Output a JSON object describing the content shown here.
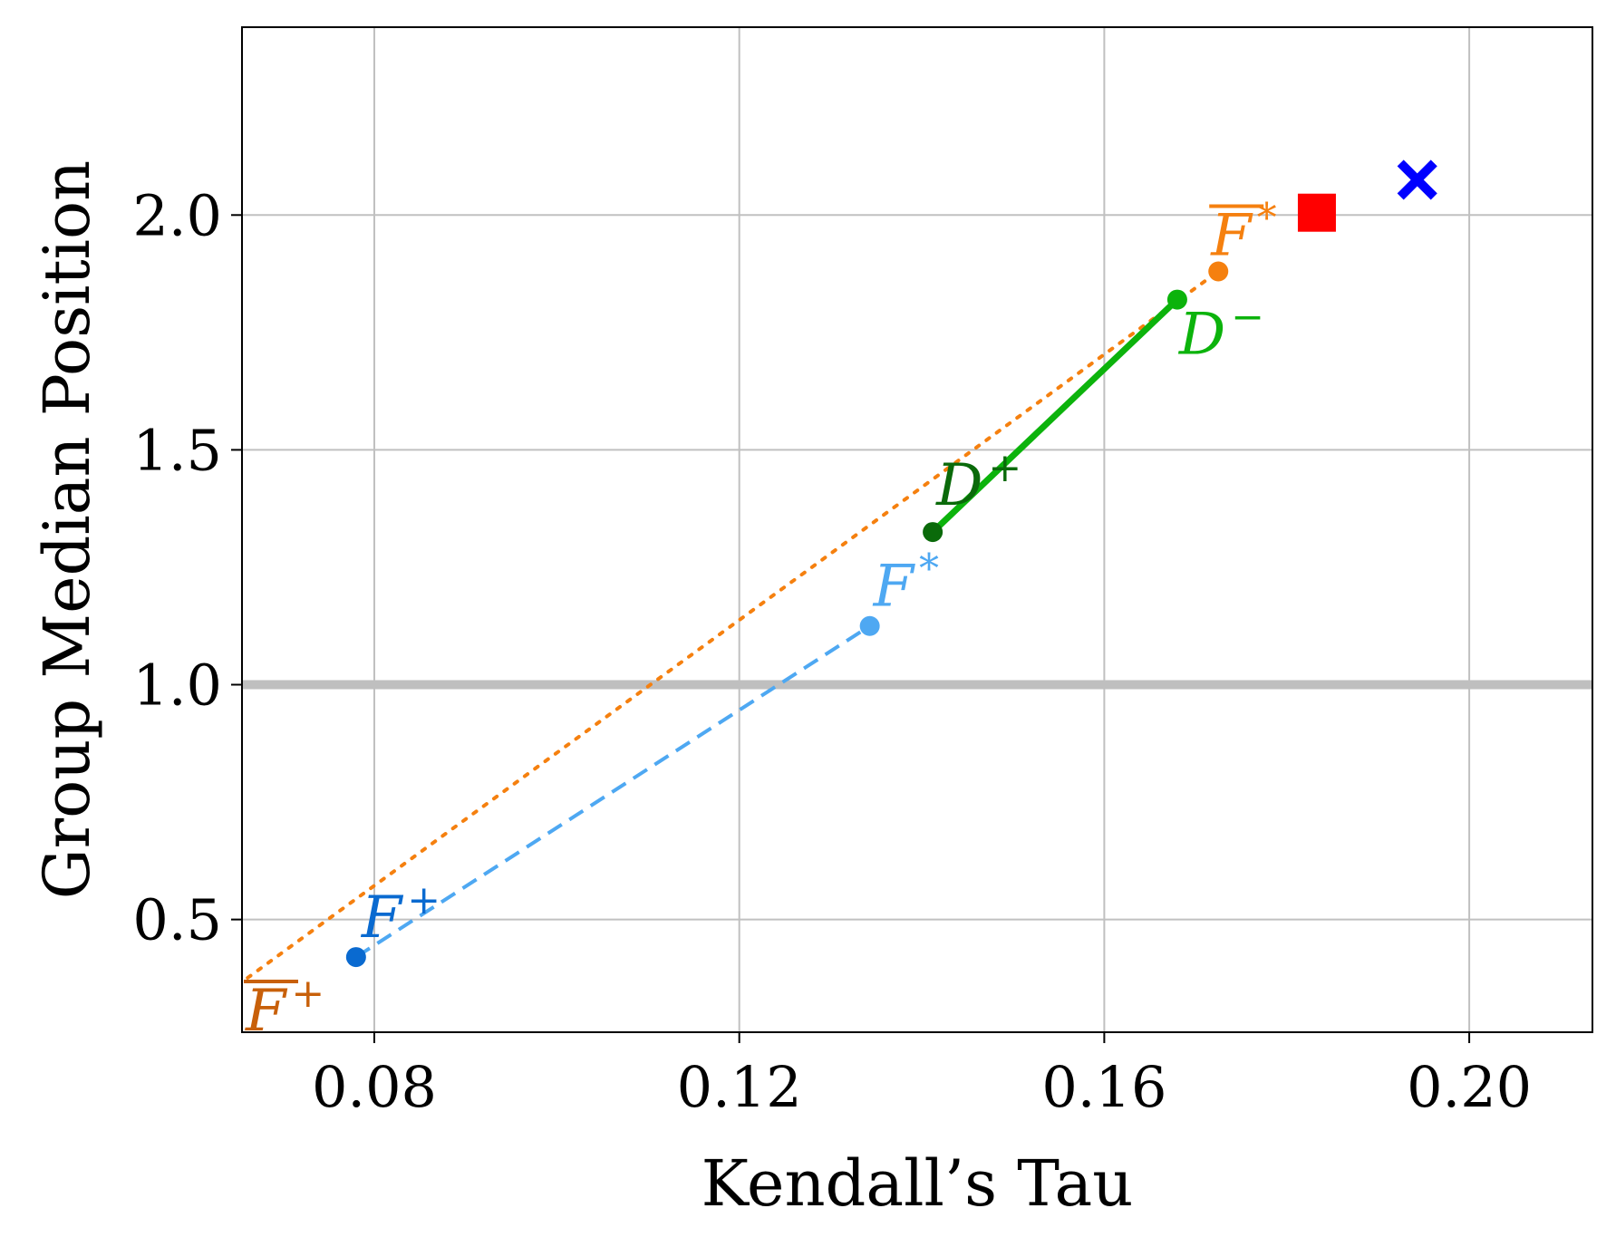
{
  "chart_data": {
    "type": "scatter",
    "xlabel": "Kendall’s Tau",
    "ylabel": "Group Median Position",
    "xlim": [
      0.0655,
      0.2135
    ],
    "ylim": [
      0.26,
      2.4
    ],
    "xticks": [
      {
        "value": 0.08,
        "label": "0.08"
      },
      {
        "value": 0.12,
        "label": "0.12"
      },
      {
        "value": 0.16,
        "label": "0.16"
      },
      {
        "value": 0.2,
        "label": "0.20"
      }
    ],
    "yticks": [
      {
        "value": 0.5,
        "label": "0.5"
      },
      {
        "value": 1.0,
        "label": "1.0"
      },
      {
        "value": 1.5,
        "label": "1.5"
      },
      {
        "value": 2.0,
        "label": "2.0"
      }
    ],
    "grid": true,
    "reference_line": {
      "y": 1.0,
      "color": "#bfbfbf"
    },
    "series": [
      {
        "line_style": "dotted",
        "line_color": "#f5800f",
        "points": [
          {
            "x": 0.065,
            "y": 0.36,
            "label": "F",
            "sup": "+",
            "overline": true,
            "color": "#c8600a",
            "marker": false
          },
          {
            "x": 0.1725,
            "y": 1.88,
            "label": "F",
            "sup": "*",
            "overline": true,
            "color": "#f5800f",
            "marker": true
          }
        ]
      },
      {
        "line_style": "dashed",
        "line_color": "#4ea8f2",
        "points": [
          {
            "x": 0.078,
            "y": 0.42,
            "label": "F",
            "sup": "+",
            "overline": false,
            "color": "#0a6ad0",
            "marker": true
          },
          {
            "x": 0.1343,
            "y": 1.125,
            "label": "F",
            "sup": "*",
            "overline": false,
            "color": "#4ea8f2",
            "marker": true
          }
        ]
      },
      {
        "line_style": "solid",
        "line_color": "#0cb30c",
        "points": [
          {
            "x": 0.1412,
            "y": 1.325,
            "label": "D",
            "sup": "+",
            "overline": false,
            "color": "#0a6a0a",
            "marker": true
          },
          {
            "x": 0.168,
            "y": 1.82,
            "label": "D",
            "sup": "−",
            "overline": false,
            "color": "#0cb30c",
            "marker": true
          }
        ]
      }
    ],
    "extra_markers": [
      {
        "x": 0.1833,
        "y": 2.005,
        "shape": "square",
        "color": "#ff0000"
      },
      {
        "x": 0.1943,
        "y": 2.075,
        "shape": "x",
        "color": "#0000ff"
      }
    ]
  }
}
